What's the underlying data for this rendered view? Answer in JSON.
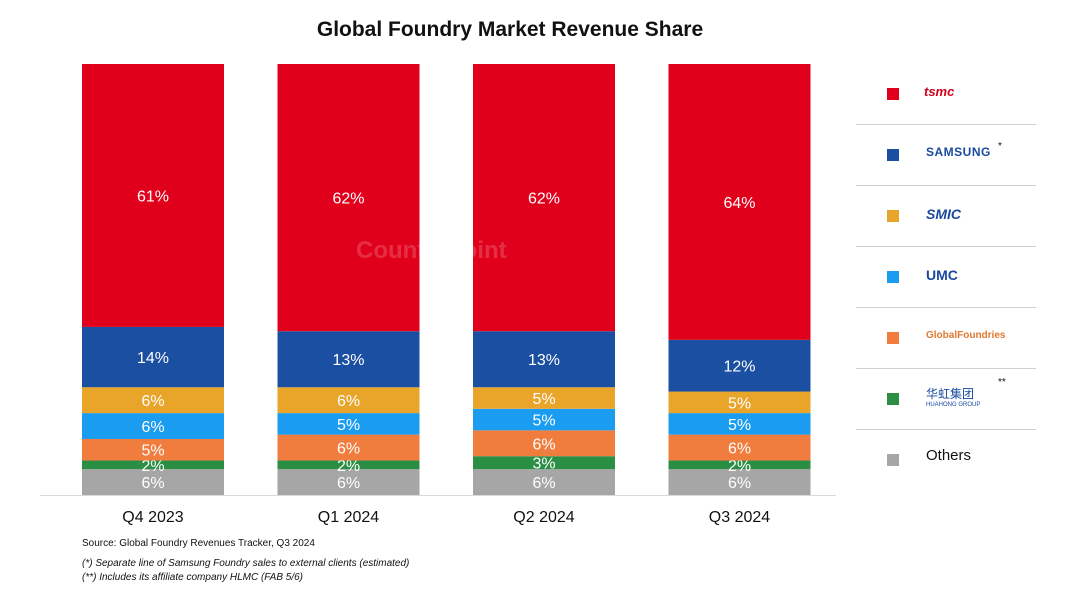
{
  "title": "Global Foundry Market Revenue Share",
  "watermark": "Counterpoint",
  "chart_data": {
    "type": "bar",
    "stacked": true,
    "normalized_to_100": true,
    "categories": [
      "Q4 2023",
      "Q1 2024",
      "Q2 2024",
      "Q3 2024"
    ],
    "series": [
      {
        "name": "tsmc",
        "color": "#e0001b",
        "values": [
          61,
          62,
          62,
          64
        ],
        "labels": [
          "61%",
          "62%",
          "62%",
          "64%"
        ]
      },
      {
        "name": "SAMSUNG",
        "color": "#1b4fa1",
        "values": [
          14,
          13,
          13,
          12
        ],
        "labels": [
          "14%",
          "13%",
          "13%",
          "12%"
        ]
      },
      {
        "name": "SMIC",
        "color": "#e9a42a",
        "values": [
          6,
          6,
          5,
          5
        ],
        "labels": [
          "6%",
          "6%",
          "5%",
          "5%"
        ]
      },
      {
        "name": "UMC",
        "color": "#1a9cf0",
        "values": [
          6,
          5,
          5,
          5
        ],
        "labels": [
          "6%",
          "5%",
          "5%",
          "5%"
        ]
      },
      {
        "name": "GlobalFoundries",
        "color": "#f07c3e",
        "values": [
          5,
          6,
          6,
          6
        ],
        "labels": [
          "5%",
          "6%",
          "6%",
          "6%"
        ]
      },
      {
        "name": "华虹集团",
        "color": "#2a8f45",
        "values": [
          2,
          2,
          3,
          2
        ],
        "labels": [
          "2%",
          "2%",
          "3%",
          "2%"
        ]
      },
      {
        "name": "Others",
        "color": "#a6a6a6",
        "values": [
          6,
          6,
          6,
          6
        ],
        "labels": [
          "6%",
          "6%",
          "6%",
          "6%"
        ]
      }
    ],
    "legend_position": "right"
  },
  "legend": {
    "tsmc": "tsmc",
    "samsung": "SAMSUNG",
    "samsung_mark": "*",
    "smic": "SMIC",
    "umc": "UMC",
    "globalfoundries": "GlobalFoundries",
    "huahong": "华虹集团",
    "huahong_sub": "HUAHONG GROUP",
    "huahong_mark": "**",
    "others": "Others"
  },
  "footnotes": {
    "source": "Source: Global Foundry Revenues Tracker, Q3 2024",
    "note1": "(*) Separate line of Samsung Foundry sales to external clients (estimated)",
    "note2": "(**) Includes its affiliate company HLMC (FAB 5/6)"
  }
}
